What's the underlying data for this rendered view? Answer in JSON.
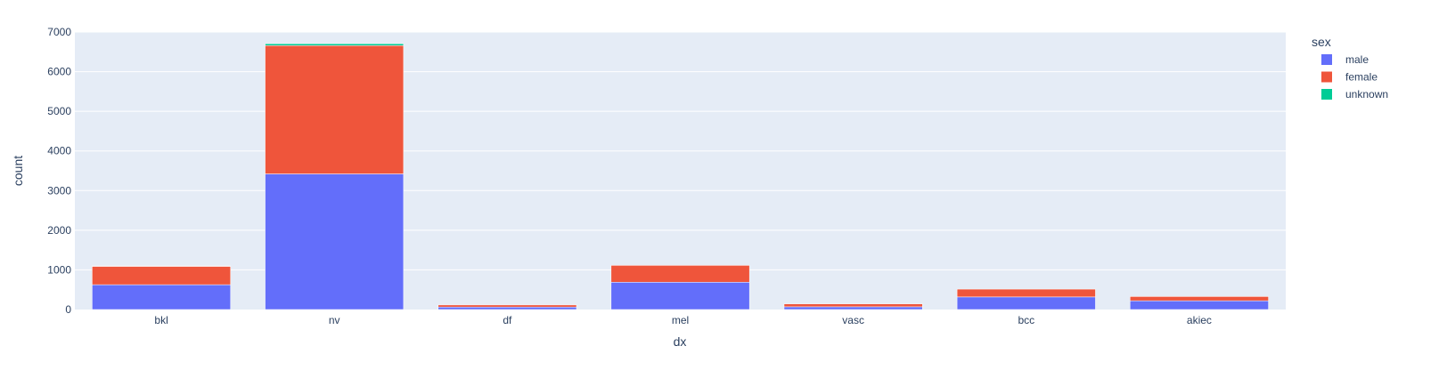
{
  "chart_data": {
    "type": "bar",
    "barmode": "stack",
    "categories": [
      "bkl",
      "nv",
      "df",
      "mel",
      "vasc",
      "bcc",
      "akiec"
    ],
    "series": [
      {
        "name": "male",
        "color": "#636efa",
        "values": [
          626,
          3421,
          63,
          689,
          69,
          317,
          221
        ]
      },
      {
        "name": "female",
        "color": "#ef553b",
        "values": [
          463,
          3237,
          52,
          424,
          73,
          197,
          106
        ]
      },
      {
        "name": "unknown",
        "color": "#00cc96",
        "values": [
          10,
          47,
          0,
          0,
          0,
          0,
          0
        ]
      }
    ],
    "xlabel": "dx",
    "ylabel": "count",
    "ylim": [
      0,
      7000
    ],
    "yticks": [
      0,
      1000,
      2000,
      3000,
      4000,
      5000,
      6000,
      7000
    ],
    "grid": true,
    "legend_title": "sex",
    "legend_position": "top-right"
  }
}
